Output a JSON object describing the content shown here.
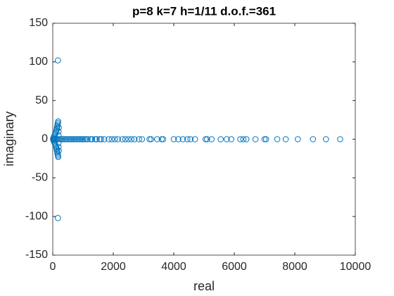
{
  "chart_data": {
    "type": "scatter",
    "title": "p=8 k=7 h=1/11 d.o.f.=361",
    "xlabel": "real",
    "ylabel": "imaginary",
    "xlim": [
      0,
      10000
    ],
    "ylim": [
      -150,
      150
    ],
    "xticks": [
      0,
      2000,
      4000,
      6000,
      8000,
      10000
    ],
    "yticks": [
      -150,
      -100,
      -50,
      0,
      50,
      100,
      150
    ],
    "grid": false,
    "series": [
      {
        "color": "#0072BD",
        "x": [
          250,
          300,
          350,
          400,
          450,
          500,
          550,
          600,
          650,
          700,
          750,
          800,
          850,
          900,
          950,
          1000,
          1050,
          1100,
          1150,
          1250,
          1300,
          1400,
          1450,
          1550,
          1600,
          1700,
          1850,
          1950,
          2050,
          2150,
          2300,
          2400,
          2500,
          2600,
          2700,
          2850,
          2950,
          3200,
          3250,
          3450,
          3600,
          3650,
          4000,
          4150,
          4300,
          4450,
          4550,
          4700,
          5050,
          5100,
          5250,
          5550,
          5750,
          5900,
          6200,
          6300,
          6400,
          6700,
          7000,
          7050,
          7420,
          7700,
          8100,
          8600,
          9030,
          9500,
          170,
          170,
          180,
          180,
          170,
          170,
          160,
          160,
          150,
          150,
          140,
          140,
          130,
          130,
          120,
          120,
          100,
          100,
          80,
          80,
          60,
          60,
          40,
          40,
          20,
          20,
          10,
          200,
          150,
          100,
          50,
          190,
          190,
          190,
          190,
          200,
          200
        ],
        "values": [
          0,
          0,
          0,
          0,
          0,
          0,
          0,
          0,
          0,
          0,
          0,
          0,
          0,
          0,
          0,
          0,
          0,
          0,
          0,
          0,
          0,
          0,
          0,
          0,
          0,
          0,
          0,
          0,
          0,
          0,
          0,
          0,
          0,
          0,
          0,
          0,
          0,
          0,
          0,
          0,
          0,
          0,
          0,
          0,
          0,
          0,
          0,
          0,
          0,
          0,
          0,
          0,
          0,
          0,
          0,
          0,
          0,
          0,
          0,
          0,
          0,
          0,
          0,
          0,
          0,
          0,
          102,
          -102,
          23,
          -23,
          21,
          -21,
          19,
          -19,
          17,
          -17,
          15,
          -15,
          13,
          -13,
          11,
          -11,
          9,
          -9,
          7,
          -7,
          5,
          -5,
          3,
          -3,
          1.5,
          -1.5,
          0,
          0,
          0,
          0,
          0,
          5,
          -5,
          10,
          -10,
          15,
          -15
        ]
      }
    ]
  }
}
